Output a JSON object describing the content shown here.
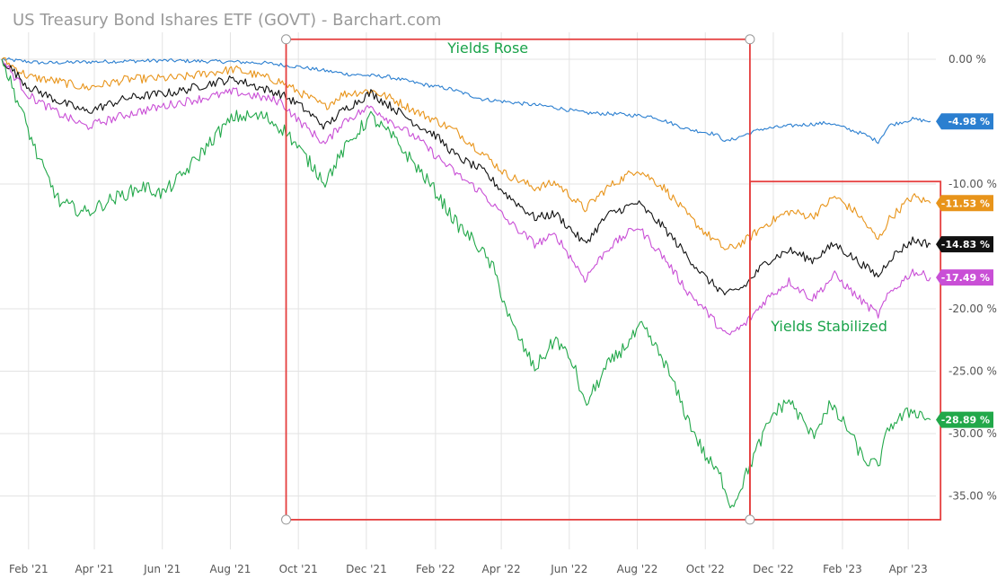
{
  "chart_data": {
    "type": "line",
    "title": "US Treasury Bond Ishares ETF (GOVT) - Barchart.com",
    "ylim": [
      -38,
      1.5
    ],
    "y_ticks": [
      "0.00 %",
      "-10.00 %",
      "-20.00 %",
      "-25.00 %",
      "-30.00 %",
      "-35.00 %"
    ],
    "y_tick_values": [
      0,
      -10,
      -20,
      -25,
      -30,
      -35
    ],
    "x_ticks": [
      "Feb '21",
      "Apr '21",
      "Jun '21",
      "Aug '21",
      "Oct '21",
      "Dec '21",
      "Feb '22",
      "Apr '22",
      "Jun '22",
      "Aug '22",
      "Oct '22",
      "Dec '22",
      "Feb '23",
      "Apr '23"
    ],
    "x_tick_dates": [
      "2021-02-01",
      "2021-04-01",
      "2021-06-01",
      "2021-08-01",
      "2021-10-01",
      "2021-12-01",
      "2022-02-01",
      "2022-04-01",
      "2022-06-01",
      "2022-08-01",
      "2022-10-01",
      "2022-12-01",
      "2023-02-01",
      "2023-04-01"
    ],
    "x_range": [
      "2021-01-08",
      "2023-04-21"
    ],
    "grid": true,
    "series": [
      {
        "color": "#2b7fd0",
        "last_label": "-4.98 %",
        "points": [
          [
            "2021-01-08",
            0
          ],
          [
            "2021-02-15",
            -0.3
          ],
          [
            "2021-04-01",
            -0.2
          ],
          [
            "2021-06-01",
            -0.1
          ],
          [
            "2021-08-01",
            -0.2
          ],
          [
            "2021-09-01",
            -0.3
          ],
          [
            "2021-10-01",
            -0.6
          ],
          [
            "2021-11-15",
            -1.2
          ],
          [
            "2021-12-20",
            -1.4
          ],
          [
            "2022-01-20",
            -2
          ],
          [
            "2022-02-15",
            -2.4
          ],
          [
            "2022-03-15",
            -3.2
          ],
          [
            "2022-04-15",
            -3.5
          ],
          [
            "2022-05-15",
            -3.8
          ],
          [
            "2022-06-15",
            -4.3
          ],
          [
            "2022-07-15",
            -4.4
          ],
          [
            "2022-08-15",
            -4.6
          ],
          [
            "2022-09-15",
            -5.6
          ],
          [
            "2022-10-10",
            -6
          ],
          [
            "2022-10-20",
            -6.6
          ],
          [
            "2022-11-20",
            -5.6
          ],
          [
            "2022-12-20",
            -5.3
          ],
          [
            "2023-01-20",
            -5.1
          ],
          [
            "2023-02-20",
            -6
          ],
          [
            "2023-03-05",
            -6.6
          ],
          [
            "2023-03-15",
            -5.3
          ],
          [
            "2023-04-05",
            -4.8
          ],
          [
            "2023-04-21",
            -4.98
          ]
        ]
      },
      {
        "color": "#e8941a",
        "last_label": "-11.53 %",
        "points": [
          [
            "2021-01-08",
            0
          ],
          [
            "2021-02-01",
            -1.4
          ],
          [
            "2021-03-01",
            -1.8
          ],
          [
            "2021-03-25",
            -2.3
          ],
          [
            "2021-05-01",
            -1.6
          ],
          [
            "2021-06-15",
            -1.5
          ],
          [
            "2021-07-20",
            -1
          ],
          [
            "2021-08-05",
            -0.8
          ],
          [
            "2021-09-15",
            -1.8
          ],
          [
            "2021-10-01",
            -2.6
          ],
          [
            "2021-10-25",
            -3.8
          ],
          [
            "2021-11-10",
            -2.8
          ],
          [
            "2021-12-05",
            -2.5
          ],
          [
            "2021-12-25",
            -3.2
          ],
          [
            "2022-01-15",
            -4.2
          ],
          [
            "2022-02-01",
            -4.9
          ],
          [
            "2022-02-20",
            -5.8
          ],
          [
            "2022-03-15",
            -7.5
          ],
          [
            "2022-04-05",
            -9.2
          ],
          [
            "2022-05-01",
            -10.3
          ],
          [
            "2022-05-20",
            -9.9
          ],
          [
            "2022-06-15",
            -12
          ],
          [
            "2022-07-05",
            -10.3
          ],
          [
            "2022-08-01",
            -8.8
          ],
          [
            "2022-08-25",
            -10.3
          ],
          [
            "2022-09-15",
            -12.5
          ],
          [
            "2022-10-01",
            -13.9
          ],
          [
            "2022-10-20",
            -15.3
          ],
          [
            "2022-11-05",
            -14.6
          ],
          [
            "2022-11-25",
            -13.2
          ],
          [
            "2022-12-15",
            -12.2
          ],
          [
            "2023-01-05",
            -12.6
          ],
          [
            "2023-01-25",
            -11
          ],
          [
            "2023-02-15",
            -12.4
          ],
          [
            "2023-03-05",
            -14.5
          ],
          [
            "2023-03-15",
            -12.8
          ],
          [
            "2023-04-05",
            -11
          ],
          [
            "2023-04-21",
            -11.53
          ]
        ]
      },
      {
        "color": "#111111",
        "last_label": "-14.83 %",
        "points": [
          [
            "2021-01-08",
            0
          ],
          [
            "2021-02-01",
            -2.2
          ],
          [
            "2021-03-01",
            -3.4
          ],
          [
            "2021-03-25",
            -4.2
          ],
          [
            "2021-05-01",
            -3.1
          ],
          [
            "2021-06-15",
            -2.6
          ],
          [
            "2021-07-20",
            -1.8
          ],
          [
            "2021-08-05",
            -1.6
          ],
          [
            "2021-09-15",
            -2.8
          ],
          [
            "2021-10-01",
            -3.6
          ],
          [
            "2021-10-25",
            -5.4
          ],
          [
            "2021-11-10",
            -4.1
          ],
          [
            "2021-12-05",
            -2.7
          ],
          [
            "2021-12-25",
            -3.9
          ],
          [
            "2022-01-15",
            -5.2
          ],
          [
            "2022-02-01",
            -6.1
          ],
          [
            "2022-02-20",
            -7.8
          ],
          [
            "2022-03-15",
            -8.9
          ],
          [
            "2022-04-05",
            -10.8
          ],
          [
            "2022-05-01",
            -12.7
          ],
          [
            "2022-05-20",
            -12.4
          ],
          [
            "2022-06-15",
            -14.8
          ],
          [
            "2022-07-05",
            -12.5
          ],
          [
            "2022-08-01",
            -11.5
          ],
          [
            "2022-08-25",
            -13.5
          ],
          [
            "2022-09-15",
            -15.8
          ],
          [
            "2022-10-01",
            -17.5
          ],
          [
            "2022-10-20",
            -18.9
          ],
          [
            "2022-11-05",
            -18.2
          ],
          [
            "2022-11-25",
            -16.2
          ],
          [
            "2022-12-15",
            -15.3
          ],
          [
            "2023-01-05",
            -16.1
          ],
          [
            "2023-01-25",
            -14.8
          ],
          [
            "2023-02-15",
            -16.2
          ],
          [
            "2023-03-05",
            -17.4
          ],
          [
            "2023-03-15",
            -16
          ],
          [
            "2023-04-05",
            -14.5
          ],
          [
            "2023-04-21",
            -14.83
          ]
        ]
      },
      {
        "color": "#c94fd6",
        "last_label": "-17.49 %",
        "points": [
          [
            "2021-01-08",
            0
          ],
          [
            "2021-02-01",
            -2.9
          ],
          [
            "2021-03-01",
            -4.4
          ],
          [
            "2021-03-25",
            -5.4
          ],
          [
            "2021-05-01",
            -4.4
          ],
          [
            "2021-06-15",
            -3.5
          ],
          [
            "2021-07-20",
            -2.9
          ],
          [
            "2021-08-05",
            -2.6
          ],
          [
            "2021-09-15",
            -3.4
          ],
          [
            "2021-10-01",
            -4.9
          ],
          [
            "2021-10-25",
            -6.8
          ],
          [
            "2021-11-10",
            -5
          ],
          [
            "2021-12-05",
            -3.8
          ],
          [
            "2021-12-25",
            -5.1
          ],
          [
            "2022-01-15",
            -6.3
          ],
          [
            "2022-02-01",
            -7.7
          ],
          [
            "2022-02-20",
            -9.2
          ],
          [
            "2022-03-15",
            -10.7
          ],
          [
            "2022-04-05",
            -12.8
          ],
          [
            "2022-05-01",
            -14.8
          ],
          [
            "2022-05-20",
            -14.1
          ],
          [
            "2022-06-15",
            -17.6
          ],
          [
            "2022-07-05",
            -15.2
          ],
          [
            "2022-08-01",
            -13.4
          ],
          [
            "2022-08-25",
            -15.9
          ],
          [
            "2022-09-15",
            -18.6
          ],
          [
            "2022-10-01",
            -20.1
          ],
          [
            "2022-10-20",
            -22.2
          ],
          [
            "2022-11-05",
            -21.3
          ],
          [
            "2022-11-25",
            -19.2
          ],
          [
            "2022-12-15",
            -17.8
          ],
          [
            "2023-01-05",
            -19.2
          ],
          [
            "2023-01-25",
            -17.3
          ],
          [
            "2023-02-15",
            -19.1
          ],
          [
            "2023-03-05",
            -20.5
          ],
          [
            "2023-03-15",
            -18.8
          ],
          [
            "2023-04-05",
            -17
          ],
          [
            "2023-04-21",
            -17.49
          ]
        ]
      },
      {
        "color": "#22a84a",
        "last_label": "-28.89 %",
        "points": [
          [
            "2021-01-08",
            0
          ],
          [
            "2021-01-25",
            -4
          ],
          [
            "2021-02-10",
            -8
          ],
          [
            "2021-03-01",
            -11.5
          ],
          [
            "2021-03-25",
            -12.3
          ],
          [
            "2021-04-15",
            -11.3
          ],
          [
            "2021-05-15",
            -10.2
          ],
          [
            "2021-06-01",
            -10.8
          ],
          [
            "2021-06-20",
            -9.2
          ],
          [
            "2021-07-20",
            -6
          ],
          [
            "2021-08-05",
            -4.6
          ],
          [
            "2021-09-01",
            -4.6
          ],
          [
            "2021-09-20",
            -5.8
          ],
          [
            "2021-10-05",
            -7.6
          ],
          [
            "2021-10-25",
            -9.8
          ],
          [
            "2021-11-10",
            -7.4
          ],
          [
            "2021-11-25",
            -5.6
          ],
          [
            "2021-12-05",
            -4.6
          ],
          [
            "2021-12-25",
            -6.3
          ],
          [
            "2022-01-15",
            -8.6
          ],
          [
            "2022-02-01",
            -10.6
          ],
          [
            "2022-02-20",
            -13.2
          ],
          [
            "2022-03-10",
            -14.8
          ],
          [
            "2022-03-25",
            -16.8
          ],
          [
            "2022-04-10",
            -21.2
          ],
          [
            "2022-05-01",
            -24.8
          ],
          [
            "2022-05-20",
            -22.4
          ],
          [
            "2022-06-05",
            -24.5
          ],
          [
            "2022-06-15",
            -27.8
          ],
          [
            "2022-07-05",
            -24.6
          ],
          [
            "2022-07-25",
            -22.6
          ],
          [
            "2022-08-05",
            -21.4
          ],
          [
            "2022-08-25",
            -24.2
          ],
          [
            "2022-09-15",
            -28.8
          ],
          [
            "2022-10-01",
            -31.8
          ],
          [
            "2022-10-15",
            -33.5
          ],
          [
            "2022-10-25",
            -35.9
          ],
          [
            "2022-11-05",
            -33.6
          ],
          [
            "2022-11-15",
            -31.5
          ],
          [
            "2022-12-01",
            -28.4
          ],
          [
            "2022-12-15",
            -27.3
          ],
          [
            "2023-01-05",
            -30.2
          ],
          [
            "2023-01-20",
            -27.7
          ],
          [
            "2023-02-05",
            -29.5
          ],
          [
            "2023-02-20",
            -32.1
          ],
          [
            "2023-03-05",
            -32.6
          ],
          [
            "2023-03-15",
            -29.4
          ],
          [
            "2023-04-05",
            -28.1
          ],
          [
            "2023-04-21",
            -28.89
          ]
        ]
      }
    ],
    "annotations": [
      {
        "text": "Yields Rose",
        "color": "#1aa34a",
        "x": "2022-03-20",
        "y": 0.5
      },
      {
        "text": "Yields Stabilized",
        "color": "#1aa34a",
        "x": "2023-01-20",
        "y": -21.8
      }
    ],
    "boxes": [
      {
        "color": "#e53e3e",
        "x0": "2021-09-20",
        "x1": "2022-11-10",
        "y0": 1.6,
        "y1": -36.9
      },
      {
        "color": "#e53e3e",
        "x0": "2022-11-10",
        "x1": "2023-04-30",
        "y0": -9.8,
        "y1": -36.9
      }
    ]
  }
}
